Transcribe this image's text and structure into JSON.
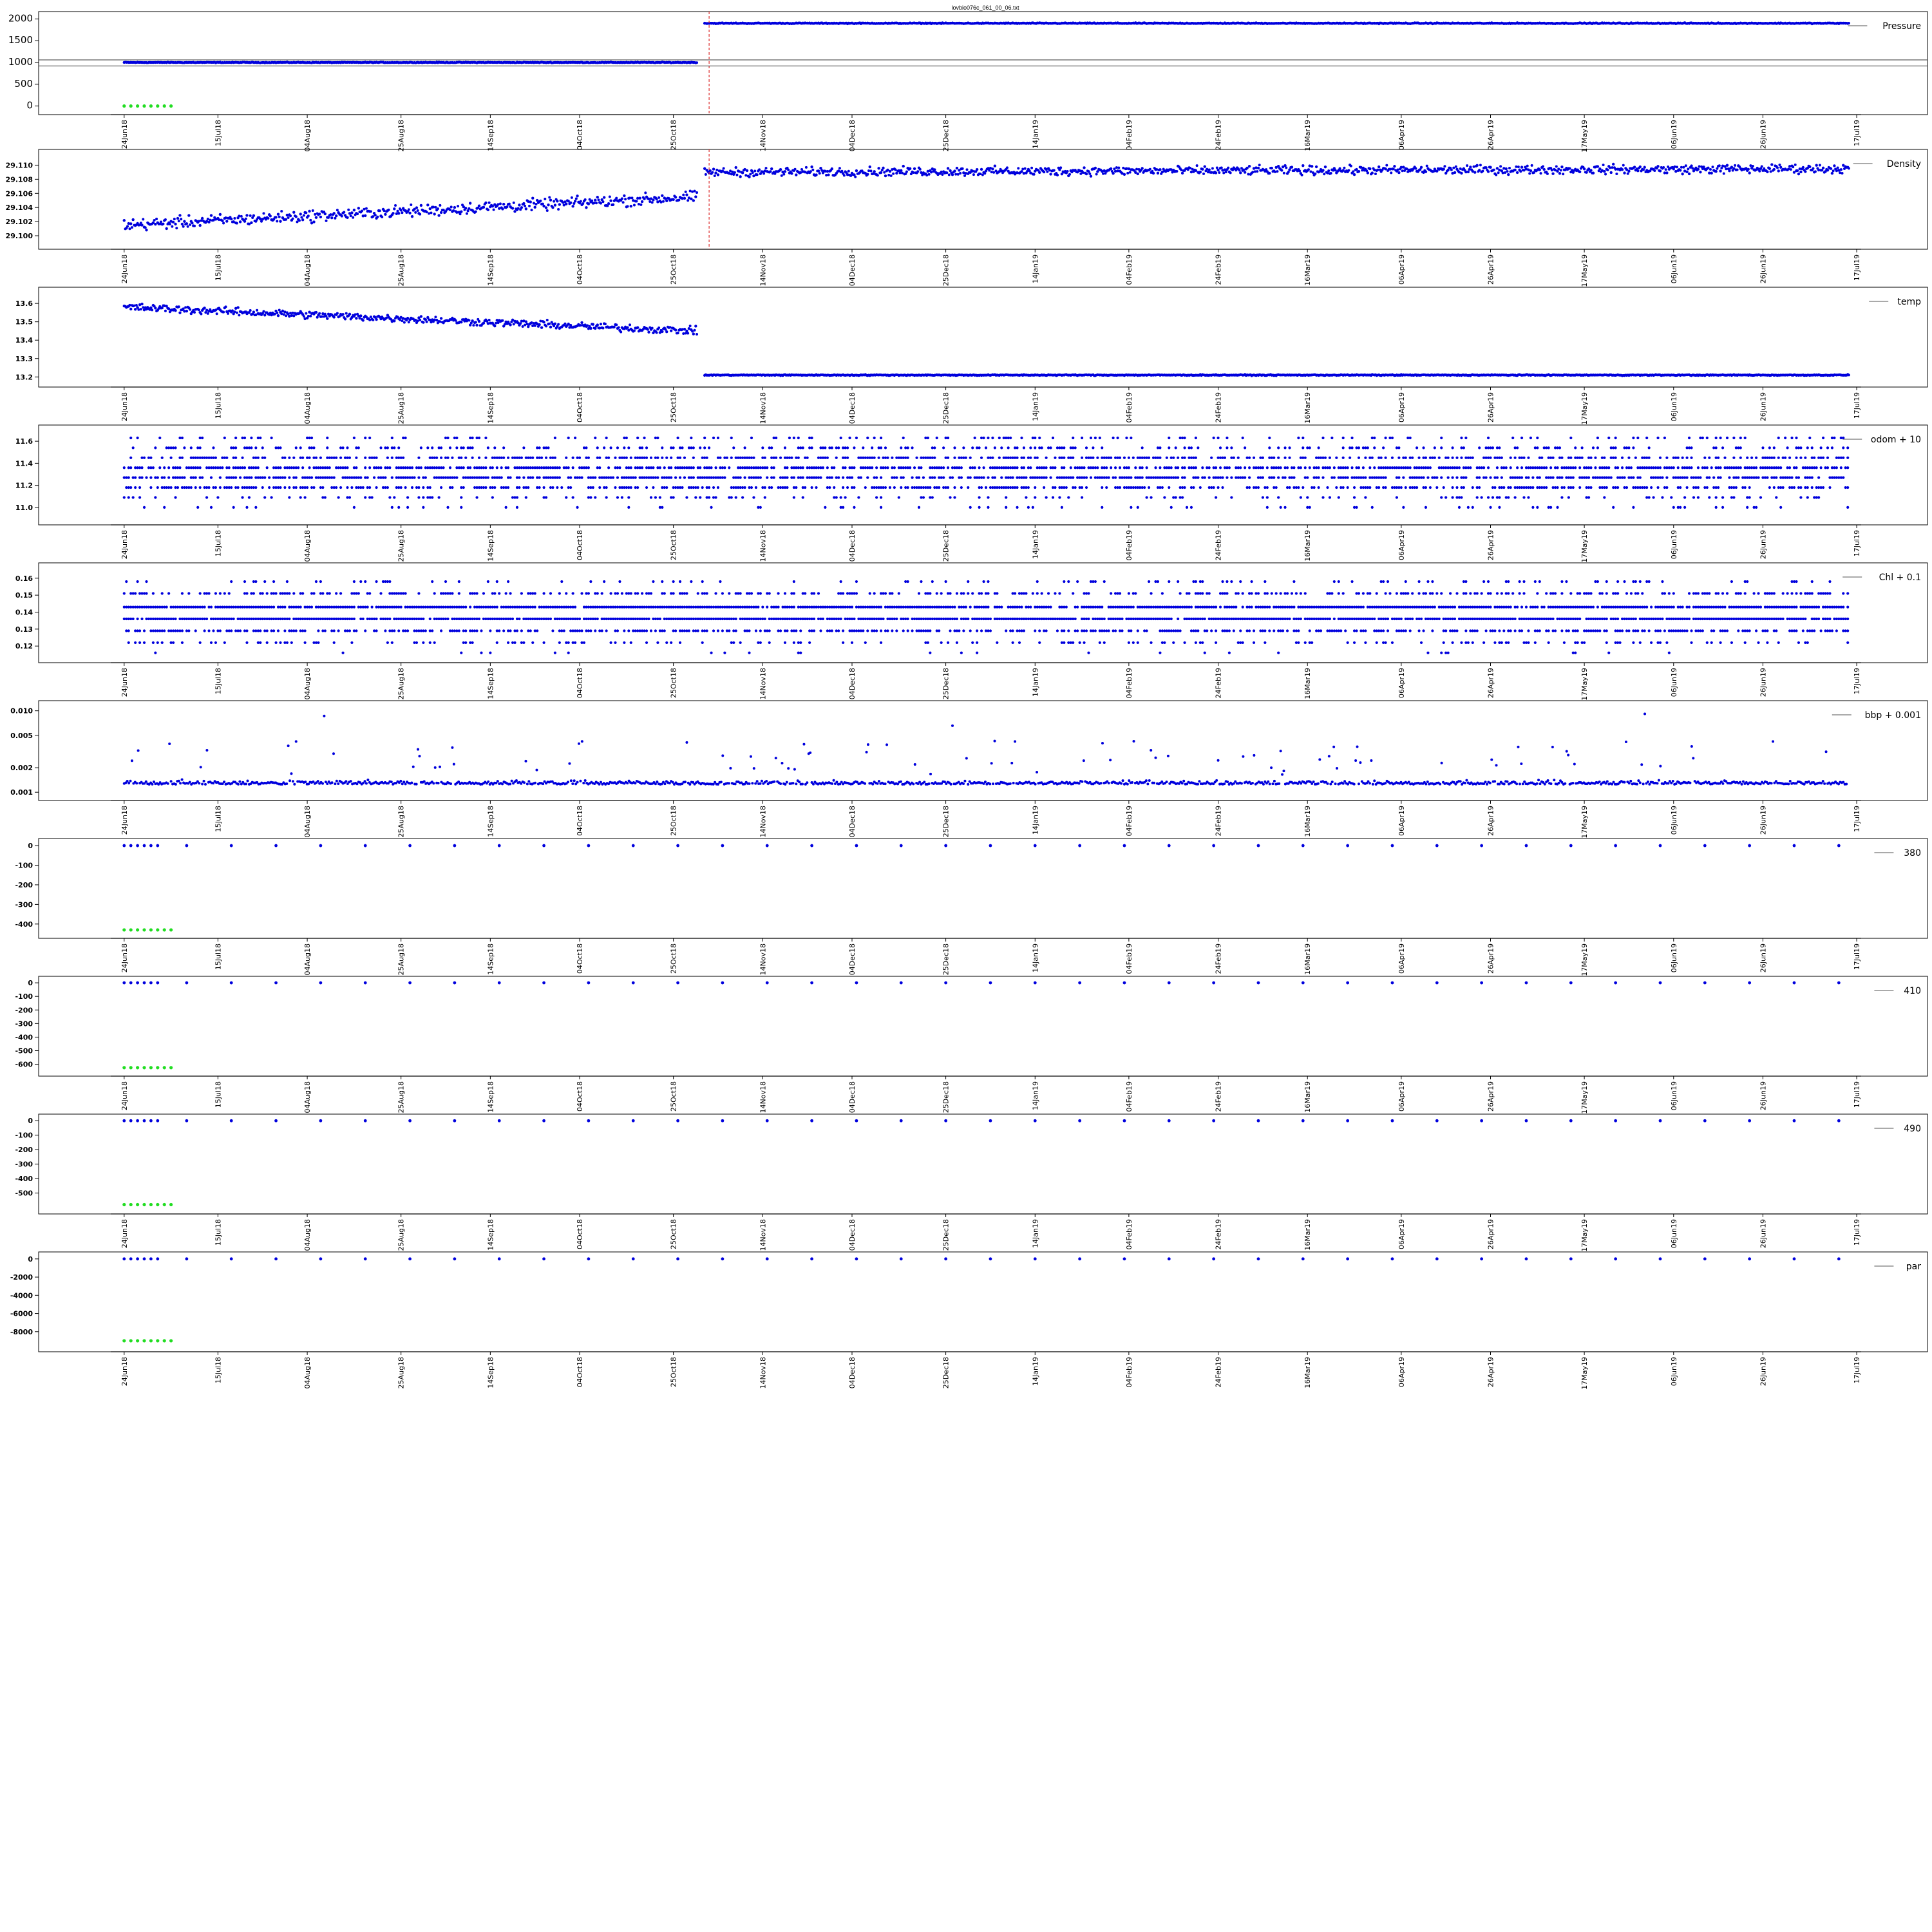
{
  "figure": {
    "title": "lovbio076c_061_00_06.txt",
    "colors": {
      "points": "#0000dd",
      "flags": "#22dd22",
      "marker": "#dd3333",
      "frame": "#000000"
    }
  },
  "chart_data": [
    {
      "type": "scatter",
      "series_name": "Pressure",
      "ylim": [
        -50,
        2050
      ],
      "yticks": [
        0,
        500,
        1000,
        1500,
        2000
      ],
      "ytick_labels": [
        "0",
        "500",
        "1000",
        "1500",
        "2000"
      ],
      "segments": [
        {
          "from": "2018-06-24",
          "to": "2018-10-30",
          "value": 1000,
          "jitter": 12
        },
        {
          "from": "2018-11-01",
          "to": "2019-07-15",
          "value": 1900,
          "jitter": 15
        }
      ],
      "flags": {
        "value": 0
      },
      "vline": "2018-11-02",
      "hlines": [
        920,
        1060
      ]
    },
    {
      "type": "scatter",
      "series_name": "Density",
      "ylim": [
        29.099,
        29.1115
      ],
      "yticks": [
        29.1,
        29.102,
        29.104,
        29.106,
        29.108,
        29.11
      ],
      "ytick_labels": [
        "29.100",
        "29.102",
        "29.104",
        "29.106",
        "29.108",
        "29.110"
      ],
      "segments": [
        {
          "from": "2018-06-24",
          "to": "2018-10-30",
          "start": 29.1015,
          "end": 29.1055,
          "jitter": 0.0012
        },
        {
          "from": "2018-11-01",
          "to": "2019-07-15",
          "start": 29.109,
          "end": 29.1095,
          "jitter": 0.0009
        }
      ],
      "vline": "2018-11-02"
    },
    {
      "type": "scatter",
      "series_name": "temp",
      "ylim": [
        13.18,
        13.66
      ],
      "yticks": [
        13.2,
        13.3,
        13.4,
        13.5,
        13.6
      ],
      "ytick_labels": [
        "13.2",
        "13.3",
        "13.4",
        "13.5",
        "13.6"
      ],
      "segments": [
        {
          "from": "2018-06-24",
          "to": "2018-10-30",
          "start": 13.58,
          "end": 13.45,
          "jitter": 0.03
        },
        {
          "from": "2018-11-01",
          "to": "2019-07-15",
          "value": 13.21,
          "jitter": 0.004
        }
      ]
    },
    {
      "type": "scatter",
      "series_name": "odom + 10",
      "ylim": [
        10.9,
        11.7
      ],
      "yticks": [
        11.0,
        11.2,
        11.4,
        11.6
      ],
      "ytick_labels": [
        "11.0",
        "11.2",
        "11.4",
        "11.6"
      ],
      "levels": [
        11.0,
        11.09,
        11.18,
        11.27,
        11.36,
        11.45,
        11.54,
        11.63
      ],
      "weights": [
        0.03,
        0.06,
        0.16,
        0.22,
        0.22,
        0.16,
        0.09,
        0.06
      ]
    },
    {
      "type": "scatter",
      "series_name": "Chl + 0.1",
      "ylim": [
        0.114,
        0.166
      ],
      "yticks": [
        0.12,
        0.13,
        0.14,
        0.15,
        0.16
      ],
      "ytick_labels": [
        "0.12",
        "0.13",
        "0.14",
        "0.15",
        "0.16"
      ],
      "levels": [
        0.116,
        0.122,
        0.129,
        0.136,
        0.143,
        0.151,
        0.158
      ],
      "weights": [
        0.01,
        0.07,
        0.17,
        0.28,
        0.28,
        0.14,
        0.05
      ]
    },
    {
      "type": "scatter",
      "series_name": "bbp + 0.001",
      "yscale": "log",
      "ylim": [
        0.00095,
        0.0115
      ],
      "yticks": [
        0.001,
        0.002,
        0.005,
        0.01
      ],
      "ytick_labels": [
        "0.001",
        "0.002",
        "0.005",
        "0.010"
      ],
      "base": 0.00125,
      "spread": 0.15,
      "outlier_rate": 0.06
    },
    {
      "type": "scatter",
      "series_name": "380",
      "ylim": [
        -440,
        10
      ],
      "yticks": [
        0,
        -100,
        -200,
        -300,
        -400
      ],
      "ytick_labels": [
        "0",
        "-100",
        "-200",
        "-300",
        "-400"
      ],
      "sparse": {
        "value": 0
      },
      "flags": {
        "value": -430
      }
    },
    {
      "type": "scatter",
      "series_name": "410",
      "ylim": [
        -640,
        10
      ],
      "yticks": [
        0,
        -100,
        -200,
        -300,
        -400,
        -500,
        -600
      ],
      "ytick_labels": [
        "0",
        "-100",
        "-200",
        "-300",
        "-400",
        "-500",
        "-600"
      ],
      "sparse": {
        "value": 0
      },
      "flags": {
        "value": -625
      }
    },
    {
      "type": "scatter",
      "series_name": "490",
      "ylim": [
        -600,
        10
      ],
      "yticks": [
        0,
        -100,
        -200,
        -300,
        -400,
        -500
      ],
      "ytick_labels": [
        "0",
        "-100",
        "-200",
        "-300",
        "-400",
        "-500"
      ],
      "sparse": {
        "value": 0
      },
      "flags": {
        "value": -580
      }
    },
    {
      "type": "scatter",
      "series_name": "par",
      "ylim": [
        -9500,
        200
      ],
      "yticks": [
        0,
        -2000,
        -4000,
        -6000,
        -8000
      ],
      "ytick_labels": [
        "0",
        "-2000",
        "-4000",
        "-6000",
        "-8000"
      ],
      "sparse": {
        "value": 0
      },
      "flags": {
        "value": -9000
      }
    }
  ],
  "x_axis": {
    "range": [
      "2018-06-21",
      "2019-07-18"
    ],
    "ticks": [
      "2018-06-24",
      "2018-07-15",
      "2018-08-04",
      "2018-08-25",
      "2018-09-14",
      "2018-10-04",
      "2018-10-25",
      "2018-11-14",
      "2018-12-04",
      "2018-12-25",
      "2019-01-14",
      "2019-02-04",
      "2019-02-24",
      "2019-03-16",
      "2019-04-06",
      "2019-04-26",
      "2019-05-17",
      "2019-06-06",
      "2019-06-26",
      "2019-07-17"
    ],
    "tick_labels": [
      "24Jun18",
      "15Jul18",
      "04Aug18",
      "25Aug18",
      "14Sep18",
      "04Oct18",
      "25Oct18",
      "14Nov18",
      "04Dec18",
      "25Dec18",
      "14Jan19",
      "04Feb19",
      "24Feb19",
      "16Mar19",
      "06Apr19",
      "26Apr19",
      "17May19",
      "06Jun19",
      "26Jun19",
      "17Jul19"
    ]
  }
}
